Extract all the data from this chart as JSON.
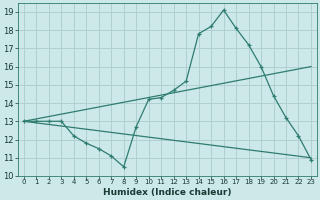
{
  "xlabel": "Humidex (Indice chaleur)",
  "bg_color": "#cce8e8",
  "grid_color": "#b0d0d0",
  "line_color": "#2e7d6e",
  "xlim": [
    -0.5,
    23.5
  ],
  "ylim": [
    10,
    19.5
  ],
  "yticks": [
    10,
    11,
    12,
    13,
    14,
    15,
    16,
    17,
    18,
    19
  ],
  "xticks": [
    0,
    1,
    2,
    3,
    4,
    5,
    6,
    7,
    8,
    9,
    10,
    11,
    12,
    13,
    14,
    15,
    16,
    17,
    18,
    19,
    20,
    21,
    22,
    23
  ],
  "series": [
    {
      "x": [
        0,
        1,
        2,
        3,
        4,
        5,
        6,
        7,
        8,
        9,
        10,
        11,
        12,
        13,
        14,
        15,
        16,
        17,
        18,
        19,
        20,
        21,
        22,
        23
      ],
      "y": [
        13,
        13,
        13,
        13,
        12.2,
        11.8,
        11.5,
        11.1,
        10.5,
        12.7,
        14.2,
        14.3,
        14.7,
        15.2,
        17.8,
        18.2,
        19.1,
        18.1,
        17.2,
        16.0,
        14.4,
        13.2,
        12.2,
        10.9
      ]
    },
    {
      "x": [
        0,
        23
      ],
      "y": [
        13,
        16.0
      ]
    },
    {
      "x": [
        0,
        23
      ],
      "y": [
        13,
        11.0
      ]
    }
  ]
}
